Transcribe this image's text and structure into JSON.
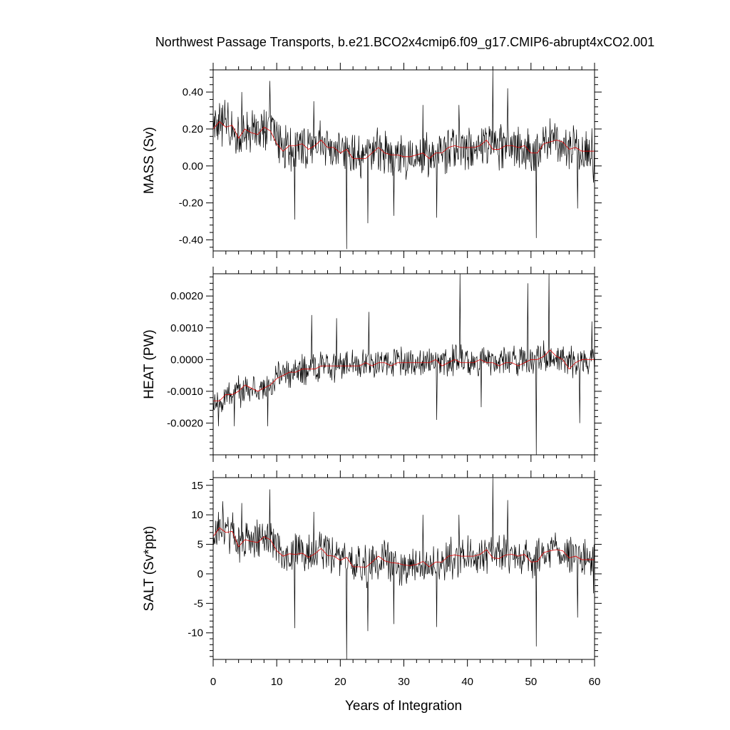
{
  "chart_data": {
    "type": "line",
    "title": "Northwest Passage Transports, b.e21.BCO2x4cmip6.f09_g17.CMIP6-abrupt4xCO2.001",
    "xlabel": "Years of Integration",
    "xlim": [
      0,
      60
    ],
    "x_ticks": [
      "0",
      "10",
      "20",
      "30",
      "40",
      "50",
      "60"
    ],
    "grid": false,
    "colors": {
      "raw": "#000000",
      "smoothed": "#e00000"
    },
    "panels": [
      {
        "ylabel": "MASS (Sv)",
        "ylim": [
          -0.46,
          0.52
        ],
        "y_ticks": [
          "0.40",
          "0.20",
          "0.00",
          "-0.20",
          "-0.40"
        ],
        "series": [
          {
            "style": "monthly, black thin line",
            "noise_amplitude": 0.1,
            "x": [
              0,
              1,
              2,
              3,
              4,
              5,
              6,
              7,
              8,
              9,
              10,
              11,
              12,
              13,
              14,
              15,
              16,
              17,
              18,
              19,
              20,
              21,
              22,
              23,
              24,
              25,
              26,
              27,
              28,
              29,
              30,
              31,
              32,
              33,
              34,
              35,
              36,
              37,
              38,
              39,
              40,
              41,
              42,
              43,
              44,
              45,
              46,
              47,
              48,
              49,
              50,
              51,
              52,
              53,
              54,
              55,
              56,
              57,
              58,
              59,
              60
            ],
            "y_center": [
              0.2,
              0.22,
              0.23,
              0.2,
              0.16,
              0.18,
              0.18,
              0.19,
              0.19,
              0.2,
              0.15,
              0.1,
              0.1,
              0.11,
              0.11,
              0.1,
              0.12,
              0.14,
              0.1,
              0.08,
              0.09,
              0.07,
              0.05,
              0.04,
              0.05,
              0.06,
              0.09,
              0.08,
              0.07,
              0.06,
              0.05,
              0.05,
              0.06,
              0.07,
              0.05,
              0.06,
              0.08,
              0.1,
              0.09,
              0.1,
              0.1,
              0.1,
              0.11,
              0.12,
              0.1,
              0.1,
              0.11,
              0.1,
              0.1,
              0.09,
              0.07,
              0.09,
              0.12,
              0.13,
              0.13,
              0.12,
              0.1,
              0.1,
              0.09,
              0.08,
              0.08
            ],
            "spikes": [
              [
                1.5,
                0.33
              ],
              [
                4.5,
                0.4
              ],
              [
                8.9,
                0.46
              ],
              [
                12.8,
                -0.29
              ],
              [
                15.8,
                0.35
              ],
              [
                21,
                -0.45
              ],
              [
                24.3,
                -0.31
              ],
              [
                28.4,
                -0.27
              ],
              [
                33,
                0.33
              ],
              [
                35.2,
                -0.28
              ],
              [
                38.7,
                0.33
              ],
              [
                44,
                0.52
              ],
              [
                46.3,
                0.42
              ],
              [
                50.8,
                -0.39
              ],
              [
                57.3,
                -0.23
              ],
              [
                59.8,
                -0.09
              ]
            ]
          },
          {
            "style": "annual mean, red line",
            "x": [
              0,
              1,
              2,
              3,
              4,
              5,
              6,
              7,
              8,
              9,
              10,
              11,
              12,
              13,
              14,
              15,
              16,
              17,
              18,
              19,
              20,
              21,
              22,
              23,
              24,
              25,
              26,
              27,
              28,
              29,
              30,
              31,
              32,
              33,
              34,
              35,
              36,
              37,
              38,
              39,
              40,
              41,
              42,
              43,
              44,
              45,
              46,
              47,
              48,
              49,
              50,
              51,
              52,
              53,
              54,
              55,
              56,
              57,
              58,
              59,
              60
            ],
            "y": [
              0.2,
              0.24,
              0.21,
              0.22,
              0.15,
              0.2,
              0.18,
              0.17,
              0.21,
              0.19,
              0.12,
              0.08,
              0.11,
              0.11,
              0.12,
              0.09,
              0.11,
              0.14,
              0.1,
              0.1,
              0.07,
              0.09,
              0.04,
              0.04,
              0.04,
              0.07,
              0.1,
              0.07,
              0.06,
              0.06,
              0.05,
              0.05,
              0.06,
              0.07,
              0.04,
              0.07,
              0.07,
              0.1,
              0.11,
              0.1,
              0.1,
              0.1,
              0.11,
              0.14,
              0.09,
              0.09,
              0.11,
              0.11,
              0.1,
              0.11,
              0.07,
              0.07,
              0.12,
              0.13,
              0.14,
              0.13,
              0.09,
              0.1,
              0.08,
              0.08,
              0.08
            ]
          }
        ]
      },
      {
        "ylabel": "HEAT (PW)",
        "ylim": [
          -0.003,
          0.0027
        ],
        "y_ticks": [
          "0.0020",
          "0.0010",
          "0.0000",
          "-0.0010",
          "-0.0020"
        ],
        "series": [
          {
            "style": "monthly, black thin line",
            "noise_amplitude": 0.0004,
            "x": [
              0,
              1,
              2,
              3,
              4,
              5,
              6,
              7,
              8,
              9,
              10,
              11,
              12,
              13,
              14,
              15,
              16,
              17,
              18,
              19,
              20,
              21,
              22,
              23,
              24,
              25,
              26,
              27,
              28,
              29,
              30,
              31,
              32,
              33,
              34,
              35,
              36,
              37,
              38,
              39,
              40,
              41,
              42,
              43,
              44,
              45,
              46,
              47,
              48,
              49,
              50,
              51,
              52,
              53,
              54,
              55,
              56,
              57,
              58,
              59,
              60
            ],
            "y_center": [
              -0.0013,
              -0.0012,
              -0.0012,
              -0.0011,
              -0.001,
              -0.0009,
              -0.0009,
              -0.0009,
              -0.0009,
              -0.0008,
              -0.0006,
              -0.0005,
              -0.0004,
              -0.0004,
              -0.0003,
              -0.0003,
              -0.0003,
              -0.0002,
              -0.0002,
              -0.0002,
              -0.0002,
              -0.0002,
              -0.0002,
              -0.0002,
              -0.0001,
              -0.0002,
              -0.0001,
              -0.0001,
              -0.0001,
              -0.0001,
              -0.0001,
              -0.0001,
              -0.0001,
              -0.0001,
              -0.0001,
              -0.0001,
              -0.0001,
              -0.0001,
              0.0,
              0.0,
              0.0,
              -0.0001,
              0.0,
              -0.0001,
              -0.0001,
              -0.0001,
              -0.0001,
              -0.0001,
              -0.0001,
              0.0,
              0.0,
              0.0,
              0.0001,
              0.0002,
              0.0001,
              0.0,
              -0.0001,
              -0.0001,
              0.0,
              0.0,
              0.0
            ],
            "spikes": [
              [
                0.8,
                -0.0021
              ],
              [
                3.3,
                -0.0021
              ],
              [
                8.6,
                -0.0021
              ],
              [
                15.5,
                0.0014
              ],
              [
                19.4,
                0.0013
              ],
              [
                24.5,
                0.0015
              ],
              [
                35.2,
                -0.0019
              ],
              [
                38.8,
                0.0027
              ],
              [
                42.2,
                -0.0015
              ],
              [
                49.5,
                0.0024
              ],
              [
                50.8,
                -0.003
              ],
              [
                52.8,
                0.0027
              ],
              [
                57.7,
                -0.002
              ],
              [
                59.6,
                0.0012
              ]
            ]
          },
          {
            "style": "annual mean, red line",
            "x": [
              0,
              1,
              2,
              3,
              4,
              5,
              6,
              7,
              8,
              9,
              10,
              11,
              12,
              13,
              14,
              15,
              16,
              17,
              18,
              19,
              20,
              21,
              22,
              23,
              24,
              25,
              26,
              27,
              28,
              29,
              30,
              31,
              32,
              33,
              34,
              35,
              36,
              37,
              38,
              39,
              40,
              41,
              42,
              43,
              44,
              45,
              46,
              47,
              48,
              49,
              50,
              51,
              52,
              53,
              54,
              55,
              56,
              57,
              58,
              59,
              60
            ],
            "y": [
              -0.0013,
              -0.0013,
              -0.0011,
              -0.0011,
              -0.001,
              -0.0008,
              -0.0009,
              -0.001,
              -0.0009,
              -0.0008,
              -0.0006,
              -0.0005,
              -0.0004,
              -0.0004,
              -0.0003,
              -0.0003,
              -0.0003,
              -0.0002,
              -0.0002,
              -0.0002,
              -0.0002,
              -0.0002,
              -0.0002,
              -0.0002,
              -0.0001,
              -0.0002,
              -0.0001,
              -0.0001,
              -0.0002,
              -0.0001,
              -0.0001,
              -0.0001,
              -0.0001,
              -0.0001,
              -0.0001,
              0.0,
              -0.0002,
              -0.0001,
              0.0,
              -0.0001,
              -0.0001,
              -0.0001,
              0.0,
              -0.0001,
              -0.0001,
              -0.0002,
              -0.0001,
              -0.0001,
              -0.0002,
              -0.0001,
              0.0,
              0.0,
              0.0001,
              0.0003,
              0.0001,
              0.0,
              -0.0003,
              -0.0001,
              0.0,
              0.0,
              0.0
            ]
          }
        ]
      },
      {
        "ylabel": "SALT (Sv*ppt)",
        "ylim": [
          -14.5,
          16.3
        ],
        "y_ticks": [
          "15",
          "10",
          "5",
          "0",
          "-5",
          "-10"
        ],
        "series": [
          {
            "style": "monthly, black thin line",
            "noise_amplitude": 2.8,
            "x": [
              0,
              1,
              2,
              3,
              4,
              5,
              6,
              7,
              8,
              9,
              10,
              11,
              12,
              13,
              14,
              15,
              16,
              17,
              18,
              19,
              20,
              21,
              22,
              23,
              24,
              25,
              26,
              27,
              28,
              29,
              30,
              31,
              32,
              33,
              34,
              35,
              36,
              37,
              38,
              39,
              40,
              41,
              42,
              43,
              44,
              45,
              46,
              47,
              48,
              49,
              50,
              51,
              52,
              53,
              54,
              55,
              56,
              57,
              58,
              59,
              60
            ],
            "y_center": [
              6.5,
              7.5,
              7.2,
              6.8,
              4.8,
              5.4,
              5.6,
              5.7,
              5.8,
              6.0,
              4.5,
              3.2,
              3.2,
              3.3,
              3.3,
              3.0,
              3.6,
              4.2,
              3.2,
              2.7,
              2.6,
              2.4,
              1.5,
              1.2,
              1.2,
              1.8,
              2.7,
              2.4,
              2.0,
              1.8,
              1.5,
              1.4,
              1.6,
              2.0,
              1.3,
              1.8,
              2.1,
              2.9,
              2.7,
              3.0,
              3.0,
              3.0,
              3.2,
              3.6,
              3.0,
              3.0,
              3.2,
              3.0,
              3.0,
              2.7,
              2.0,
              2.6,
              3.6,
              3.8,
              3.8,
              3.6,
              3.0,
              3.0,
              2.7,
              2.4,
              2.4
            ],
            "spikes": [
              [
                1.5,
                12.3
              ],
              [
                4.5,
                12.0
              ],
              [
                8.9,
                14.3
              ],
              [
                12.8,
                -9.2
              ],
              [
                15.8,
                10.5
              ],
              [
                21,
                -14.5
              ],
              [
                24.3,
                -9.7
              ],
              [
                28.4,
                -8.5
              ],
              [
                33,
                10.0
              ],
              [
                35.2,
                -9.0
              ],
              [
                38.7,
                10.0
              ],
              [
                44,
                16.2
              ],
              [
                46.3,
                12.5
              ],
              [
                50.8,
                -12.3
              ],
              [
                57.3,
                -7.4
              ],
              [
                59.8,
                -3.3
              ]
            ]
          },
          {
            "style": "annual mean, red line",
            "x": [
              0,
              1,
              2,
              3,
              4,
              5,
              6,
              7,
              8,
              9,
              10,
              11,
              12,
              13,
              14,
              15,
              16,
              17,
              18,
              19,
              20,
              21,
              22,
              23,
              24,
              25,
              26,
              27,
              28,
              29,
              30,
              31,
              32,
              33,
              34,
              35,
              36,
              37,
              38,
              39,
              40,
              41,
              42,
              43,
              44,
              45,
              46,
              47,
              48,
              49,
              50,
              51,
              52,
              53,
              54,
              55,
              56,
              57,
              58,
              59,
              60
            ],
            "y": [
              6.3,
              7.8,
              7.0,
              7.2,
              4.6,
              5.8,
              5.5,
              5.3,
              6.3,
              5.8,
              3.9,
              3.0,
              3.4,
              3.3,
              3.5,
              2.8,
              3.4,
              4.3,
              3.1,
              3.0,
              2.3,
              2.8,
              1.2,
              1.2,
              1.1,
              2.0,
              3.0,
              2.2,
              1.9,
              1.8,
              1.5,
              1.4,
              1.6,
              2.1,
              1.2,
              2.0,
              2.0,
              3.0,
              3.2,
              3.0,
              3.0,
              3.0,
              3.3,
              4.1,
              2.7,
              2.6,
              3.2,
              3.3,
              3.0,
              3.3,
              2.0,
              2.1,
              3.6,
              3.9,
              4.1,
              3.9,
              2.7,
              3.0,
              2.4,
              2.4,
              2.4
            ]
          }
        ]
      }
    ]
  }
}
